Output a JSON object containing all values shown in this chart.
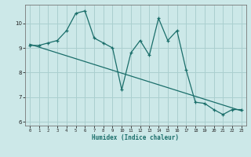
{
  "xlabel": "Humidex (Indice chaleur)",
  "bg_color": "#cce8e8",
  "grid_color": "#aacfcf",
  "line_color": "#1a6e6a",
  "x_data": [
    0,
    1,
    2,
    3,
    4,
    5,
    6,
    7,
    8,
    9,
    10,
    11,
    12,
    13,
    14,
    15,
    16,
    17,
    18,
    19,
    20,
    21,
    22,
    23
  ],
  "y_data": [
    9.1,
    9.1,
    9.2,
    9.3,
    9.7,
    10.4,
    10.5,
    9.4,
    9.2,
    9.0,
    7.3,
    8.8,
    9.3,
    8.7,
    10.2,
    9.3,
    9.7,
    8.1,
    6.8,
    6.75,
    6.5,
    6.3,
    6.5,
    6.5
  ],
  "trend_x": [
    0,
    23
  ],
  "trend_y": [
    9.15,
    6.45
  ],
  "ylim": [
    5.85,
    10.75
  ],
  "xlim": [
    -0.5,
    23.5
  ],
  "yticks": [
    6,
    7,
    8,
    9,
    10
  ],
  "xticks": [
    0,
    1,
    2,
    3,
    4,
    5,
    6,
    7,
    8,
    9,
    10,
    11,
    12,
    13,
    14,
    15,
    16,
    17,
    18,
    19,
    20,
    21,
    22,
    23
  ]
}
